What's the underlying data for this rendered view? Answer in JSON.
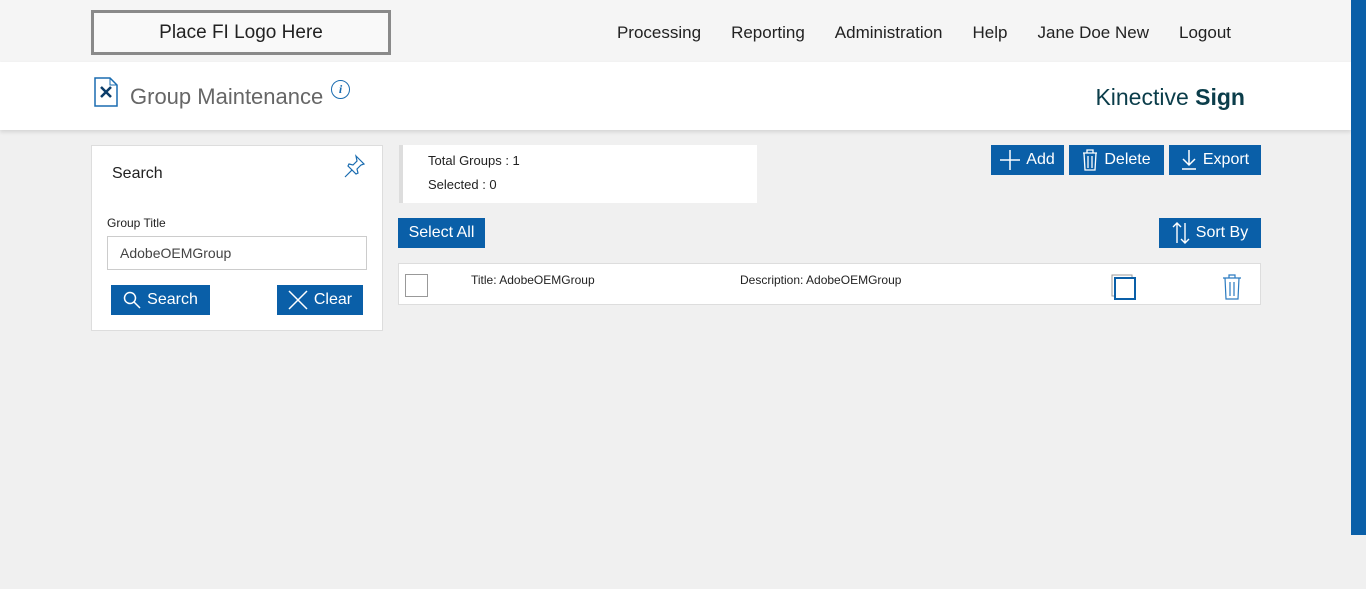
{
  "logo": "Place FI Logo Here",
  "nav": [
    "Processing",
    "Reporting",
    "Administration",
    "Help",
    "Jane Doe New",
    "Logout"
  ],
  "page_title": "Group Maintenance",
  "brand": {
    "light": "Kinective",
    "bold": "Sign"
  },
  "search": {
    "heading": "Search",
    "field_label": "Group Title",
    "field_value": "AdobeOEMGroup",
    "search_label": "Search",
    "clear_label": "Clear"
  },
  "stats": {
    "total": "Total Groups : 1",
    "selected": "Selected : 0"
  },
  "toolbar": {
    "add": "Add",
    "delete": "Delete",
    "export": "Export",
    "select_all": "Select All",
    "sort_by": "Sort By"
  },
  "rows": [
    {
      "title": "Title:  AdobeOEMGroup",
      "description": "Description: AdobeOEMGroup"
    }
  ],
  "colors": {
    "accent": "#0a5fa8"
  }
}
